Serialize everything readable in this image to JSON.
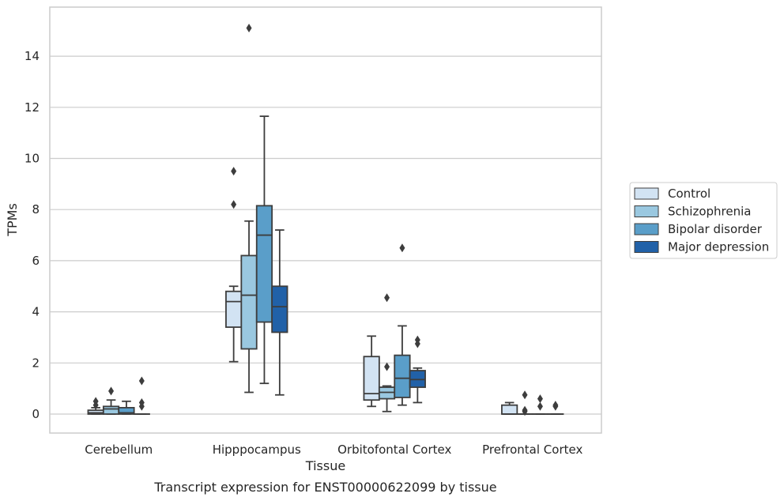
{
  "chart_data": {
    "type": "box",
    "caption": "Transcript expression for ENST00000622099 by tissue",
    "xlabel": "Tissue",
    "ylabel": "TPMs",
    "ylim": [
      -0.75,
      15.8
    ],
    "yticks": [
      0,
      2,
      4,
      6,
      8,
      10,
      12,
      14
    ],
    "grid": true,
    "legend_position": "right",
    "categories": [
      "Cerebellum",
      "Hipppocampus",
      "Orbitofontal Cortex",
      "Prefrontal Cortex"
    ],
    "series": [
      {
        "name": "Control",
        "color": "#d2e3f3",
        "boxes": [
          {
            "whislo": 0,
            "q1": 0,
            "med": 0.05,
            "q3": 0.15,
            "whishi": 0.25,
            "fliers": [
              0.35,
              0.5
            ]
          },
          {
            "whislo": 2.05,
            "q1": 3.4,
            "med": 4.4,
            "q3": 4.8,
            "whishi": 5.0,
            "fliers": [
              8.2,
              9.5
            ]
          },
          {
            "whislo": 0.3,
            "q1": 0.55,
            "med": 0.8,
            "q3": 2.25,
            "whishi": 3.05,
            "fliers": []
          },
          {
            "whislo": 0,
            "q1": 0,
            "med": 0,
            "q3": 0.35,
            "whishi": 0.45,
            "fliers": []
          }
        ]
      },
      {
        "name": "Schizophrenia",
        "color": "#9ac8e0",
        "boxes": [
          {
            "whislo": 0,
            "q1": 0,
            "med": 0.2,
            "q3": 0.3,
            "whishi": 0.55,
            "fliers": [
              0.9
            ]
          },
          {
            "whislo": 0.85,
            "q1": 2.55,
            "med": 4.65,
            "q3": 6.2,
            "whishi": 7.55,
            "fliers": [
              15.1
            ]
          },
          {
            "whislo": 0.1,
            "q1": 0.6,
            "med": 0.85,
            "q3": 1.05,
            "whishi": 1.1,
            "fliers": [
              1.85,
              4.55
            ]
          },
          {
            "whislo": 0,
            "q1": 0,
            "med": 0,
            "q3": 0,
            "whishi": 0,
            "fliers": [
              0.1,
              0.15,
              0.75
            ]
          }
        ]
      },
      {
        "name": "Bipolar disorder",
        "color": "#5a9ec9",
        "boxes": [
          {
            "whislo": 0,
            "q1": 0,
            "med": 0.05,
            "q3": 0.25,
            "whishi": 0.5,
            "fliers": []
          },
          {
            "whislo": 1.2,
            "q1": 3.6,
            "med": 7.0,
            "q3": 8.15,
            "whishi": 11.65,
            "fliers": []
          },
          {
            "whislo": 0.35,
            "q1": 0.65,
            "med": 1.4,
            "q3": 2.3,
            "whishi": 3.45,
            "fliers": [
              6.5
            ]
          },
          {
            "whislo": 0,
            "q1": 0,
            "med": 0,
            "q3": 0,
            "whishi": 0,
            "fliers": [
              0.3,
              0.6
            ]
          }
        ]
      },
      {
        "name": "Major depression",
        "color": "#2161a8",
        "boxes": [
          {
            "whislo": 0,
            "q1": 0,
            "med": 0,
            "q3": 0,
            "whishi": 0,
            "fliers": [
              0.3,
              0.45,
              1.3
            ]
          },
          {
            "whislo": 0.75,
            "q1": 3.2,
            "med": 4.2,
            "q3": 5.0,
            "whishi": 7.2,
            "fliers": []
          },
          {
            "whislo": 0.45,
            "q1": 1.05,
            "med": 1.35,
            "q3": 1.7,
            "whishi": 1.8,
            "fliers": [
              2.75,
              2.9
            ]
          },
          {
            "whislo": 0,
            "q1": 0,
            "med": 0,
            "q3": 0,
            "whishi": 0,
            "fliers": [
              0.3,
              0.35
            ]
          }
        ]
      }
    ]
  }
}
